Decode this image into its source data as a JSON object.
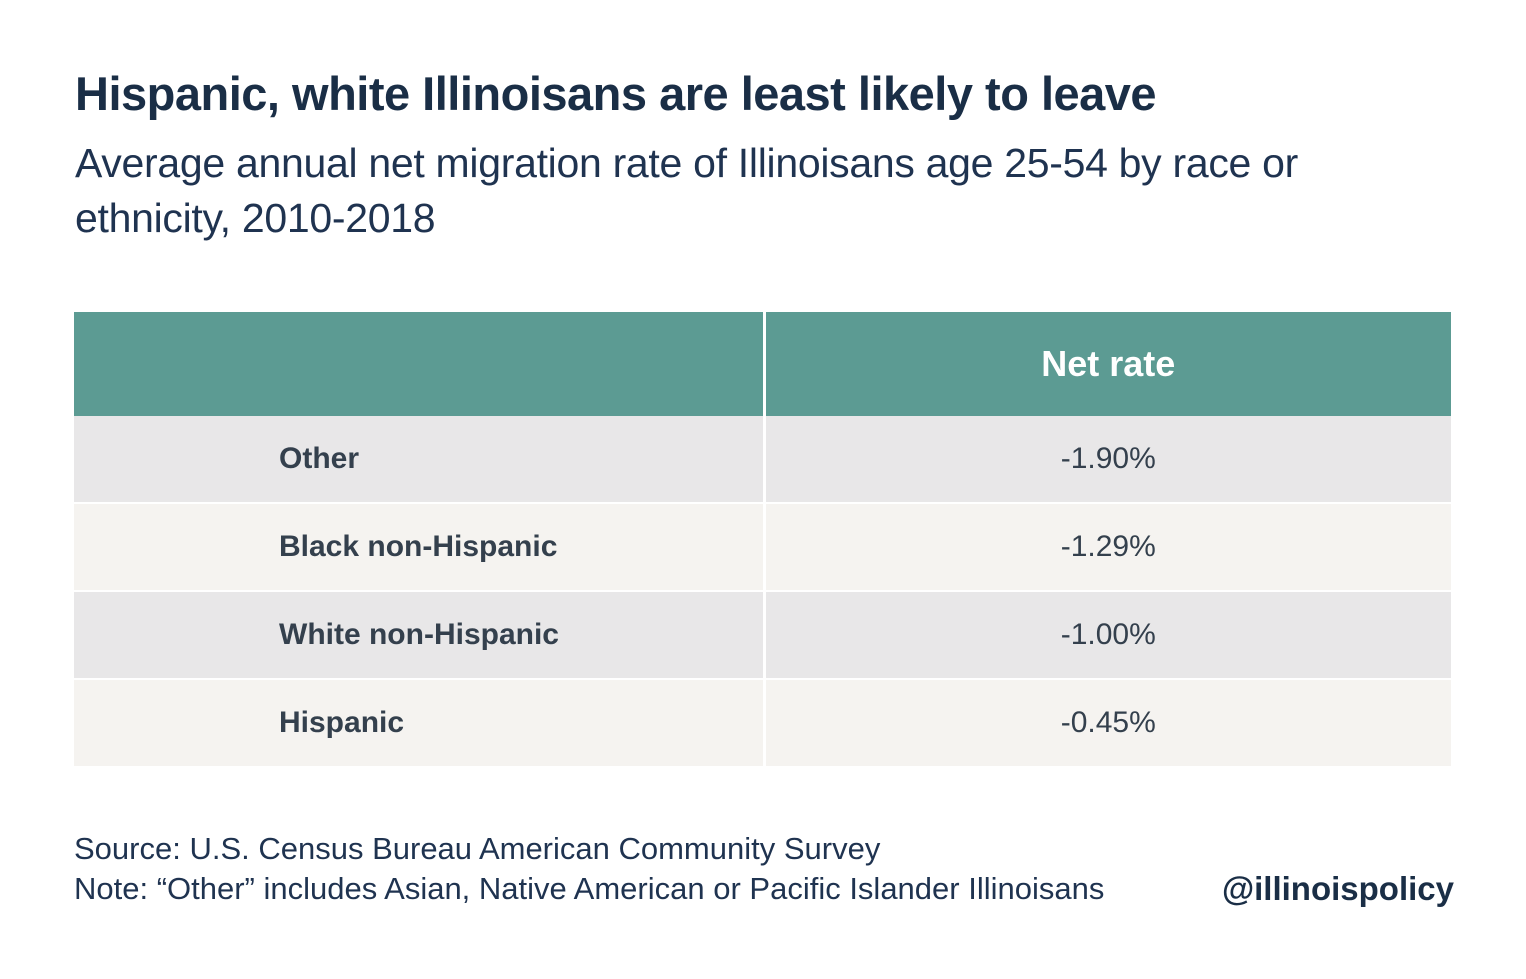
{
  "title": "Hispanic, white Illinoisans are least likely to leave",
  "subtitle": "Average annual net migration rate of Illinoisans age 25-54 by race or ethnicity, 2010-2018",
  "chart_data": {
    "type": "table",
    "columns": [
      "",
      "Net rate"
    ],
    "rows": [
      {
        "label": "Other",
        "value": "-1.90%"
      },
      {
        "label": "Black non-Hispanic",
        "value": "-1.29%"
      },
      {
        "label": "White non-Hispanic",
        "value": "-1.00%"
      },
      {
        "label": "Hispanic",
        "value": "-0.45%"
      }
    ],
    "values": [
      -1.9,
      -1.29,
      -1.0,
      -0.45
    ],
    "header_color": "#5c9b93",
    "row_colors": [
      "#e8e7e8",
      "#f5f3f0"
    ]
  },
  "footer": {
    "source": "Source: U.S. Census Bureau American Community Survey",
    "note": "Note: “Other” includes Asian, Native American or Pacific Islander Illinoisans",
    "handle": "@illinoispolicy"
  }
}
